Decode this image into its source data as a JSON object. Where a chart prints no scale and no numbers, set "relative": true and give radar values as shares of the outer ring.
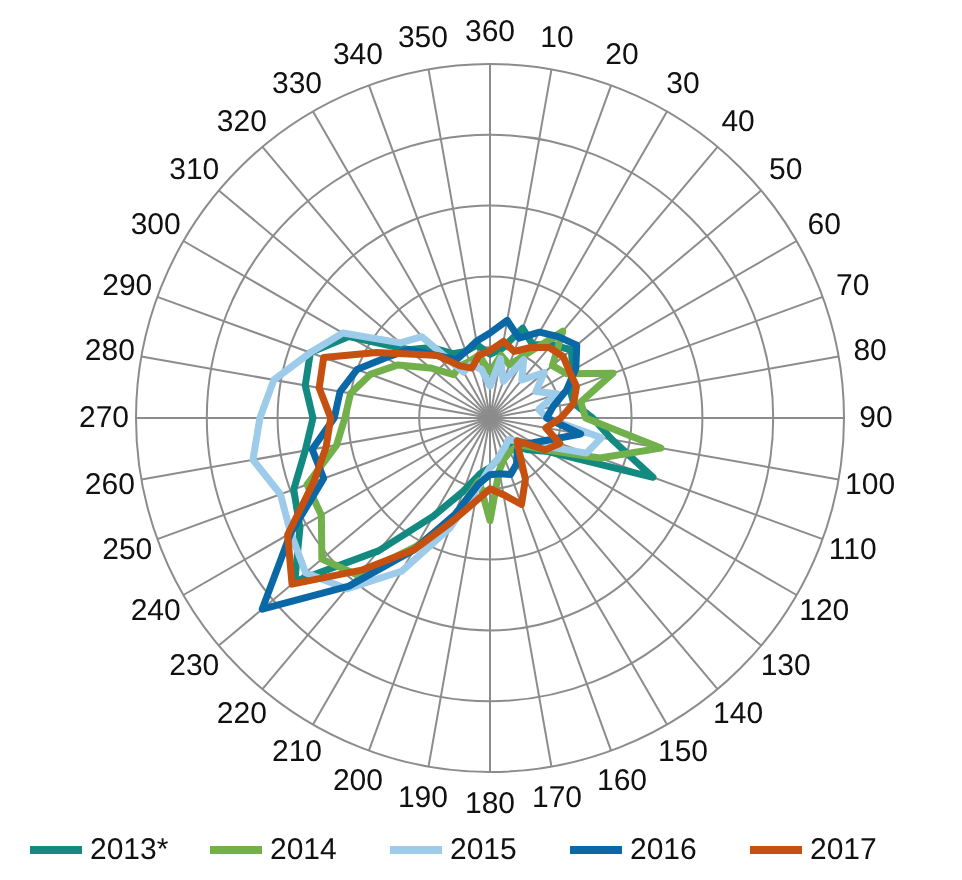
{
  "chart_data": {
    "type": "radar",
    "relative": true,
    "grid": true,
    "legend": "bottom",
    "marker": "none",
    "line_style": "solid",
    "categories": [
      "360",
      "10",
      "20",
      "30",
      "40",
      "50",
      "60",
      "70",
      "80",
      "90",
      "100",
      "110",
      "120",
      "130",
      "140",
      "150",
      "160",
      "170",
      "180",
      "190",
      "200",
      "210",
      "220",
      "230",
      "240",
      "250",
      "260",
      "270",
      "280",
      "290",
      "300",
      "310",
      "320",
      "330",
      "340",
      "350"
    ],
    "series": [
      {
        "name": "2013*",
        "color": "#138a80",
        "values": [
          0.18,
          0.2,
          0.27,
          0.24,
          0.27,
          0.3,
          0.27,
          0.24,
          0.24,
          0.29,
          0.35,
          0.49,
          0.19,
          0.14,
          0.1,
          0.11,
          0.12,
          0.12,
          0.14,
          0.16,
          0.22,
          0.32,
          0.49,
          0.72,
          0.62,
          0.59,
          0.53,
          0.5,
          0.53,
          0.54,
          0.46,
          0.3,
          0.26,
          0.21,
          0.2,
          0.21
        ]
      },
      {
        "name": "2014",
        "color": "#72b04c",
        "values": [
          0.13,
          0.18,
          0.16,
          0.21,
          0.32,
          0.23,
          0.25,
          0.37,
          0.26,
          0.27,
          0.49,
          0.33,
          0.18,
          0.12,
          0.11,
          0.11,
          0.12,
          0.15,
          0.29,
          0.18,
          0.3,
          0.42,
          0.58,
          0.62,
          0.55,
          0.55,
          0.44,
          0.41,
          0.4,
          0.36,
          0.3,
          0.22,
          0.16,
          0.17,
          0.17,
          0.18
        ]
      },
      {
        "name": "2015",
        "color": "#9dcbea",
        "values": [
          0.09,
          0.17,
          0.11,
          0.19,
          0.14,
          0.2,
          0.15,
          0.2,
          0.14,
          0.16,
          0.32,
          0.29,
          0.15,
          0.1,
          0.08,
          0.09,
          0.1,
          0.12,
          0.14,
          0.2,
          0.33,
          0.5,
          0.63,
          0.68,
          0.65,
          0.63,
          0.68,
          0.65,
          0.62,
          0.54,
          0.48,
          0.33,
          0.3,
          0.15,
          0.16,
          0.14
        ]
      },
      {
        "name": "2016",
        "color": "#0b68a6",
        "values": [
          0.24,
          0.28,
          0.24,
          0.28,
          0.3,
          0.32,
          0.28,
          0.23,
          0.18,
          0.16,
          0.26,
          0.18,
          0.14,
          0.11,
          0.12,
          0.15,
          0.17,
          0.16,
          0.16,
          0.19,
          0.29,
          0.43,
          0.62,
          0.84,
          0.65,
          0.5,
          0.51,
          0.44,
          0.43,
          0.4,
          0.34,
          0.3,
          0.23,
          0.19,
          0.2,
          0.22
        ]
      },
      {
        "name": "2017",
        "color": "#c5500f",
        "values": [
          0.19,
          0.22,
          0.2,
          0.23,
          0.26,
          0.27,
          0.26,
          0.26,
          0.24,
          0.2,
          0.16,
          0.21,
          0.18,
          0.1,
          0.13,
          0.2,
          0.26,
          0.22,
          0.2,
          0.24,
          0.31,
          0.43,
          0.56,
          0.73,
          0.66,
          0.53,
          0.47,
          0.45,
          0.49,
          0.5,
          0.37,
          0.28,
          0.23,
          0.17,
          0.15,
          0.18
        ]
      }
    ]
  }
}
